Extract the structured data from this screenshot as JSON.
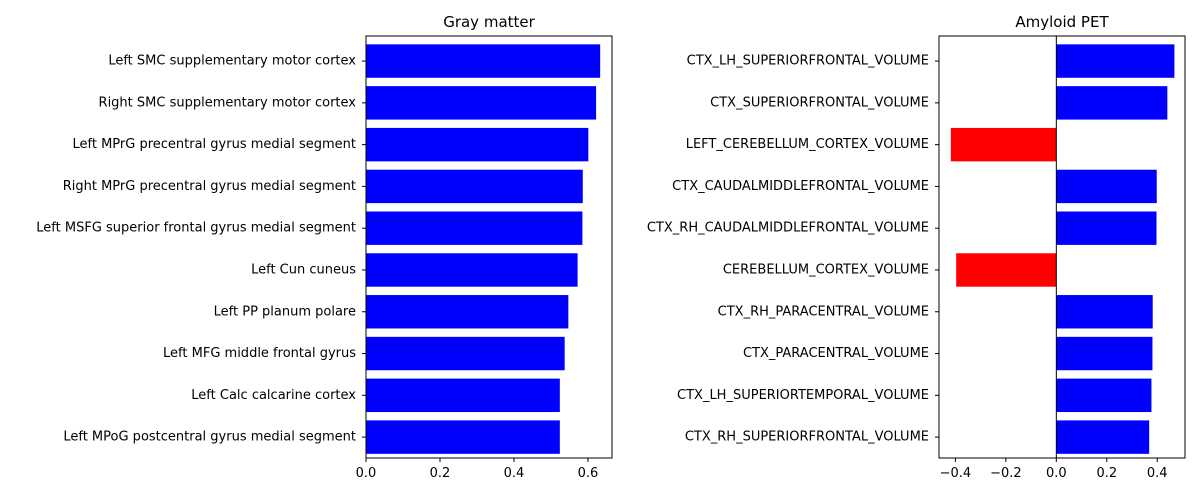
{
  "chart_data": [
    {
      "type": "bar",
      "orientation": "horizontal",
      "title": "Gray matter",
      "xlabel": "",
      "ylabel": "",
      "xlim": [
        0,
        0.665
      ],
      "xticks": [
        0.0,
        0.2,
        0.4,
        0.6
      ],
      "xtick_labels": [
        "0.0",
        "0.2",
        "0.4",
        "0.6"
      ],
      "grid": false,
      "categories": [
        "Left SMC supplementary motor cortex",
        "Right SMC supplementary motor cortex",
        "Left MPrG precentral gyrus medial segment",
        "Right MPrG precentral gyrus medial segment",
        "Left MSFG superior frontal gyrus medial segment",
        "Left Cun cuneus",
        "Left PP planum polare",
        "Left MFG middle frontal gyrus",
        "Left Calc calcarine cortex",
        "Left MPoG postcentral gyrus medial segment"
      ],
      "values": [
        0.633,
        0.622,
        0.601,
        0.586,
        0.585,
        0.572,
        0.547,
        0.537,
        0.524,
        0.524
      ],
      "colors": [
        "#0000ff",
        "#0000ff",
        "#0000ff",
        "#0000ff",
        "#0000ff",
        "#0000ff",
        "#0000ff",
        "#0000ff",
        "#0000ff",
        "#0000ff"
      ]
    },
    {
      "type": "bar",
      "orientation": "horizontal",
      "title": "Amyloid PET",
      "xlabel": "",
      "ylabel": "",
      "xlim": [
        -0.465,
        0.51
      ],
      "xticks": [
        -0.4,
        -0.2,
        0.0,
        0.2,
        0.4
      ],
      "xtick_labels": [
        "−0.4",
        "−0.2",
        "0.0",
        "0.2",
        "0.4"
      ],
      "zero_line": true,
      "grid": false,
      "categories": [
        "CTX_LH_SUPERIORFRONTAL_VOLUME",
        "CTX_SUPERIORFRONTAL_VOLUME",
        "LEFT_CEREBELLUM_CORTEX_VOLUME",
        "CTX_CAUDALMIDDLEFRONTAL_VOLUME",
        "CTX_RH_CAUDALMIDDLEFRONTAL_VOLUME",
        "CEREBELLUM_CORTEX_VOLUME",
        "CTX_RH_PARACENTRAL_VOLUME",
        "CTX_PARACENTRAL_VOLUME",
        "CTX_LH_SUPERIORTEMPORAL_VOLUME",
        "CTX_RH_SUPERIORFRONTAL_VOLUME"
      ],
      "values": [
        0.468,
        0.44,
        -0.418,
        0.398,
        0.397,
        -0.397,
        0.382,
        0.381,
        0.377,
        0.368
      ],
      "colors": [
        "#0000ff",
        "#0000ff",
        "#ff0000",
        "#0000ff",
        "#0000ff",
        "#ff0000",
        "#0000ff",
        "#0000ff",
        "#0000ff",
        "#0000ff"
      ]
    }
  ]
}
